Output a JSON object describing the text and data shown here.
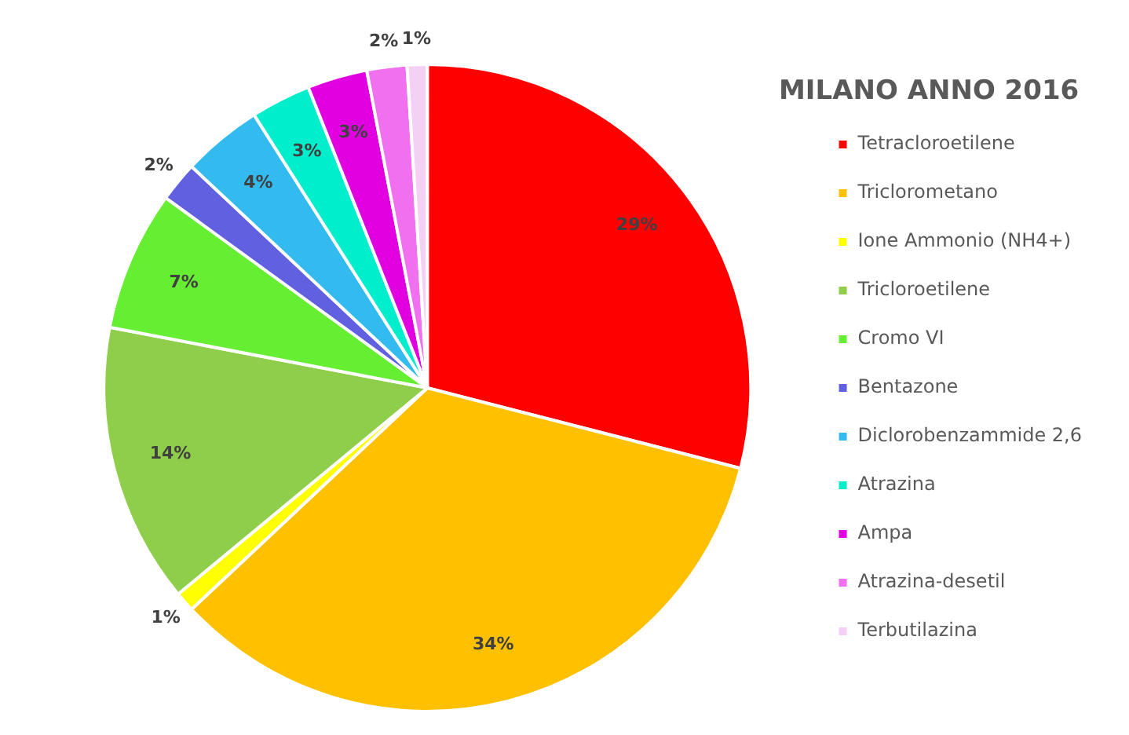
{
  "chart_data": {
    "type": "pie",
    "title": "MILANO ANNO 2016",
    "categories": [
      "Tetracloroetilene",
      "Triclorometano",
      "Ione Ammonio (NH4+)",
      "Tricloroetilene",
      "Cromo VI",
      "Bentazone",
      "Diclorobenzammide 2,6",
      "Atrazina",
      "Ampa",
      "Atrazina-desetil",
      "Terbutilazina"
    ],
    "values": [
      29,
      34,
      1,
      14,
      7,
      2,
      4,
      3,
      3,
      2,
      1
    ],
    "colors": [
      "#ff0000",
      "#ffc000",
      "#ffff00",
      "#8fce4a",
      "#66ee33",
      "#6060e0",
      "#33bbf0",
      "#00eecc",
      "#e000e0",
      "#f070f0",
      "#f4d0f4"
    ],
    "value_labels": [
      "29%",
      "34%",
      "1%",
      "14%",
      "7%",
      "2%",
      "4%",
      "3%",
      "3%",
      "2%",
      "1%"
    ],
    "legend": "right"
  }
}
